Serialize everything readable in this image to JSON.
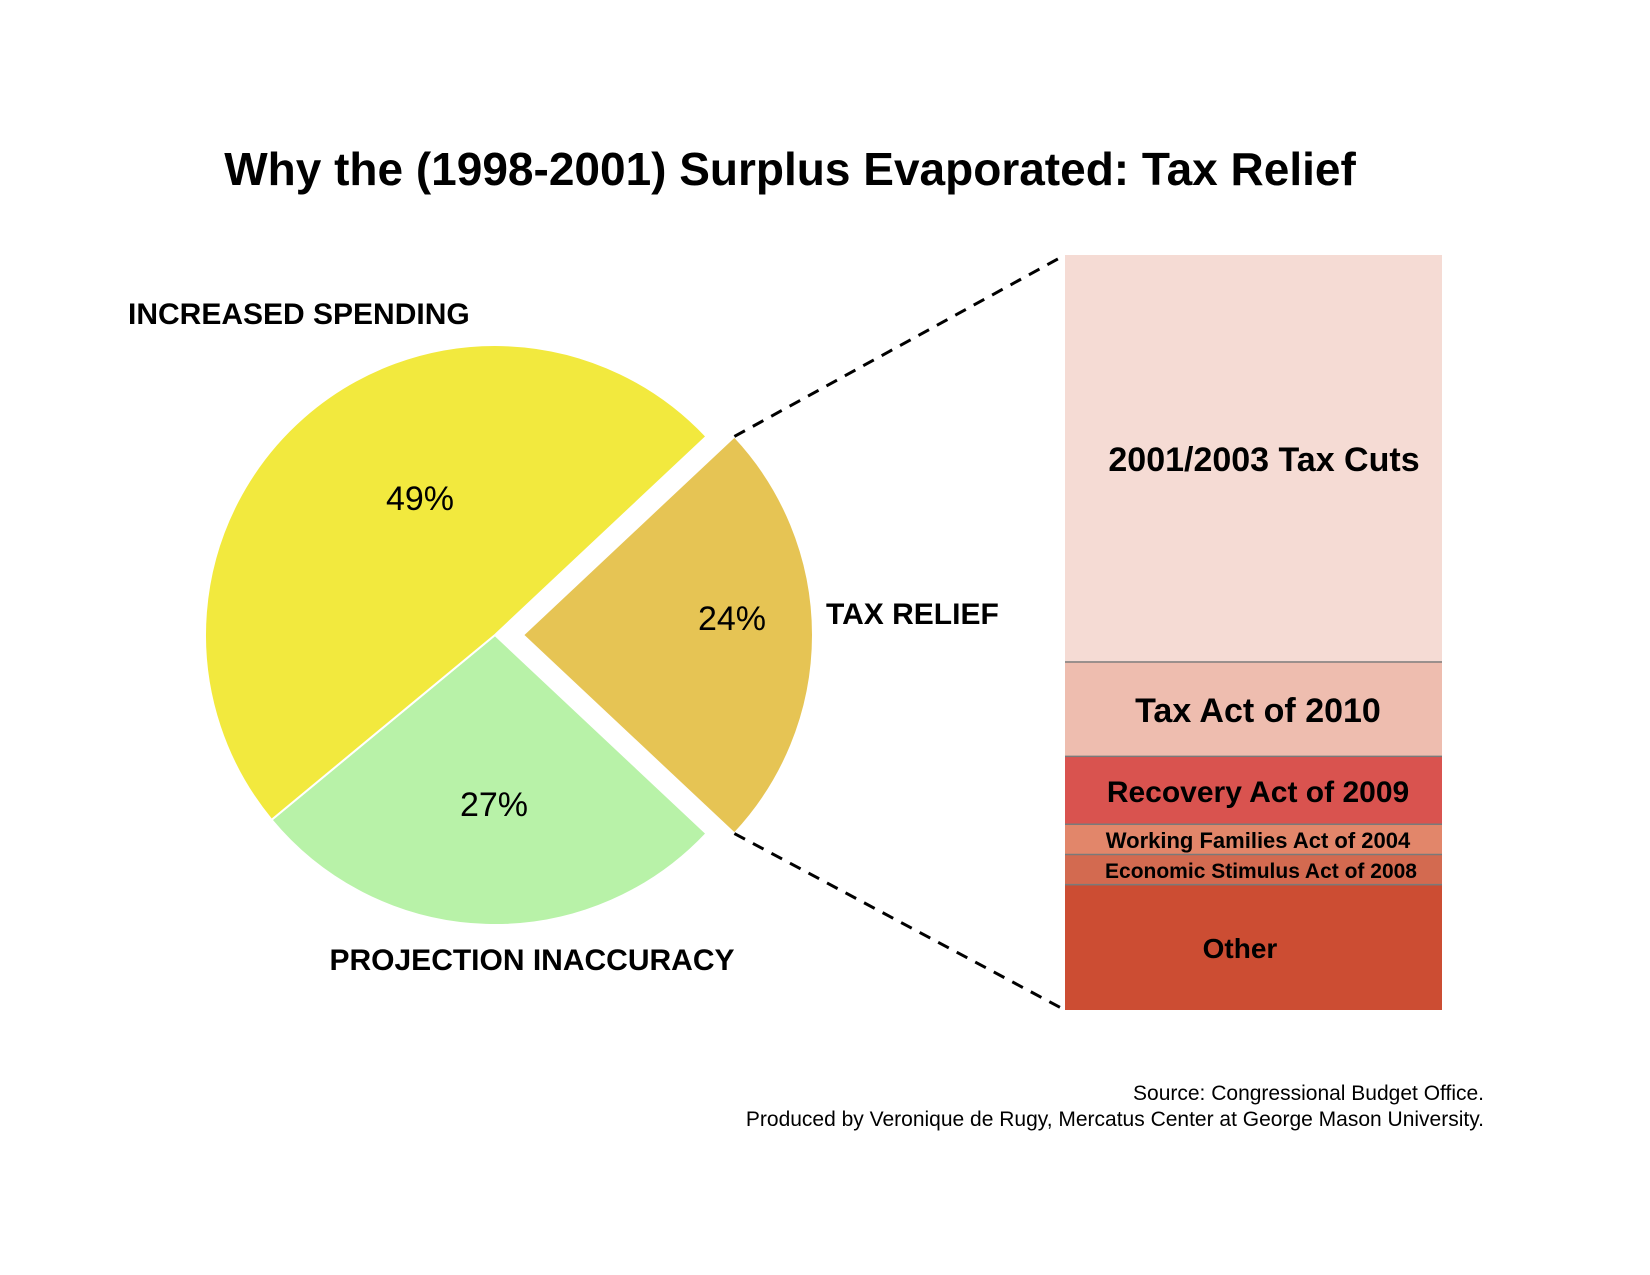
{
  "chart_data": [
    {
      "type": "pie",
      "title": "Why the (1998-2001) Surplus Evaporated: Tax Relief",
      "slices": [
        {
          "label": "INCREASED SPENDING",
          "pct_label": "49%",
          "value": 49,
          "color": "#f2e93e"
        },
        {
          "label": "TAX RELIEF",
          "pct_label": "24%",
          "value": 24,
          "color": "#e6c454",
          "exploded": true
        },
        {
          "label": "PROJECTION INACCURACY",
          "pct_label": "27%",
          "value": 27,
          "color": "#b8f2a8"
        }
      ]
    },
    {
      "type": "bar",
      "stacked": true,
      "breakdown_of": "TAX RELIEF",
      "segments": [
        {
          "label": "2001/2003 Tax Cuts",
          "value": 54,
          "color": "#f5dbd4"
        },
        {
          "label": "Tax Act of 2010",
          "value": 12.5,
          "color": "#eebdaf"
        },
        {
          "label": "Recovery Act of 2009",
          "value": 9,
          "color": "#d9534f"
        },
        {
          "label": "Working Families Act of 2004",
          "value": 4,
          "color": "#e2866a"
        },
        {
          "label": "Economic Stimulus Act of 2008",
          "value": 4,
          "color": "#d36a50"
        },
        {
          "label": "Other",
          "value": 16.5,
          "color": "#cc4d33"
        }
      ]
    }
  ],
  "source": {
    "line1": "Source: Congressional Budget Office.",
    "line2": "Produced by Veronique de Rugy, Mercatus Center at George Mason University."
  }
}
